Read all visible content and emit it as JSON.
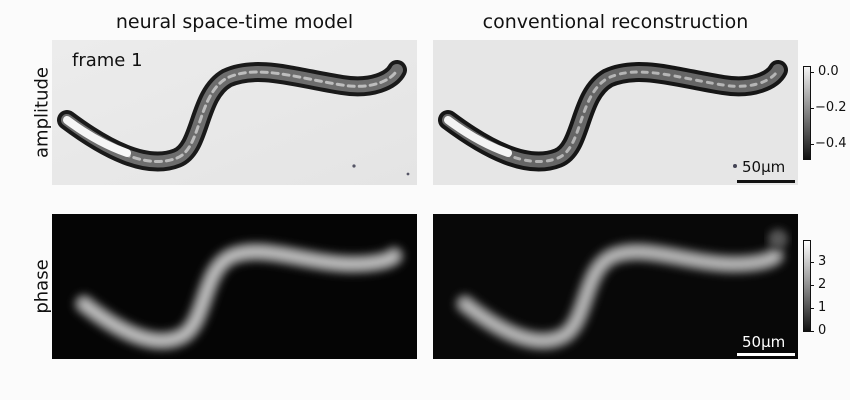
{
  "titles": {
    "left": "neural space-time model",
    "right": "conventional reconstruction"
  },
  "rows": {
    "top": "amplitude",
    "bottom": "phase"
  },
  "frame_label": "frame 1",
  "scalebar": {
    "top": "50µm",
    "bottom": "50µm"
  },
  "colorbars": {
    "amplitude": {
      "ticks": [
        "0.0",
        "−0.2",
        "−0.4"
      ]
    },
    "phase": {
      "ticks": [
        "3",
        "2",
        "1",
        "0"
      ]
    }
  }
}
